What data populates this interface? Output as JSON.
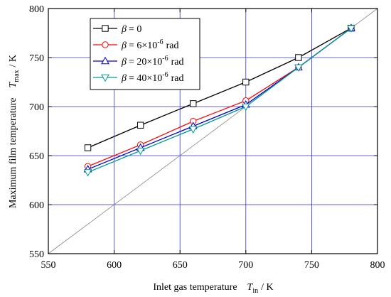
{
  "chart_data": {
    "type": "line",
    "xlabel": {
      "main": "Inlet gas temperature",
      "var": "T",
      "sub": "in",
      "unit": "/  K"
    },
    "ylabel": {
      "main": "Maximum film temperature",
      "var": "T",
      "sub": "max",
      "unit": "/  K"
    },
    "xlim": [
      550,
      800
    ],
    "ylim": [
      550,
      800
    ],
    "xticks": [
      "550",
      "600",
      "650",
      "700",
      "750",
      "800"
    ],
    "yticks": [
      "550",
      "600",
      "650",
      "700",
      "750",
      "800"
    ],
    "grid": true,
    "grid_color": "#3333cc",
    "reference_line": {
      "from": [
        550,
        550
      ],
      "to": [
        800,
        800
      ],
      "color": "#888888"
    },
    "legend_position": "top-left",
    "x": [
      580,
      620,
      660,
      700,
      740,
      780
    ],
    "series": [
      {
        "name_sym": "β",
        "name_rest": "= 0",
        "name_unit": "",
        "color": "#000000",
        "marker": "square",
        "values": [
          658,
          681,
          703,
          725,
          750,
          780
        ]
      },
      {
        "name_sym": "β",
        "name_rest": "=   6×10",
        "name_sup": "-6",
        "name_unit": "rad",
        "color": "#ff0000",
        "marker": "circle",
        "values": [
          639,
          661,
          685,
          706,
          740,
          780
        ]
      },
      {
        "name_sym": "β",
        "name_rest": "= 20×10",
        "name_sup": "-6",
        "name_unit": "rad",
        "color": "#0000cc",
        "marker": "triangle-up",
        "values": [
          636,
          658,
          680,
          702,
          740,
          780
        ]
      },
      {
        "name_sym": "β",
        "name_rest": "= 40×10",
        "name_sup": "-6",
        "name_unit": "rad",
        "color": "#009999",
        "marker": "triangle-down",
        "values": [
          633,
          655,
          677,
          700,
          740,
          780
        ]
      }
    ]
  }
}
